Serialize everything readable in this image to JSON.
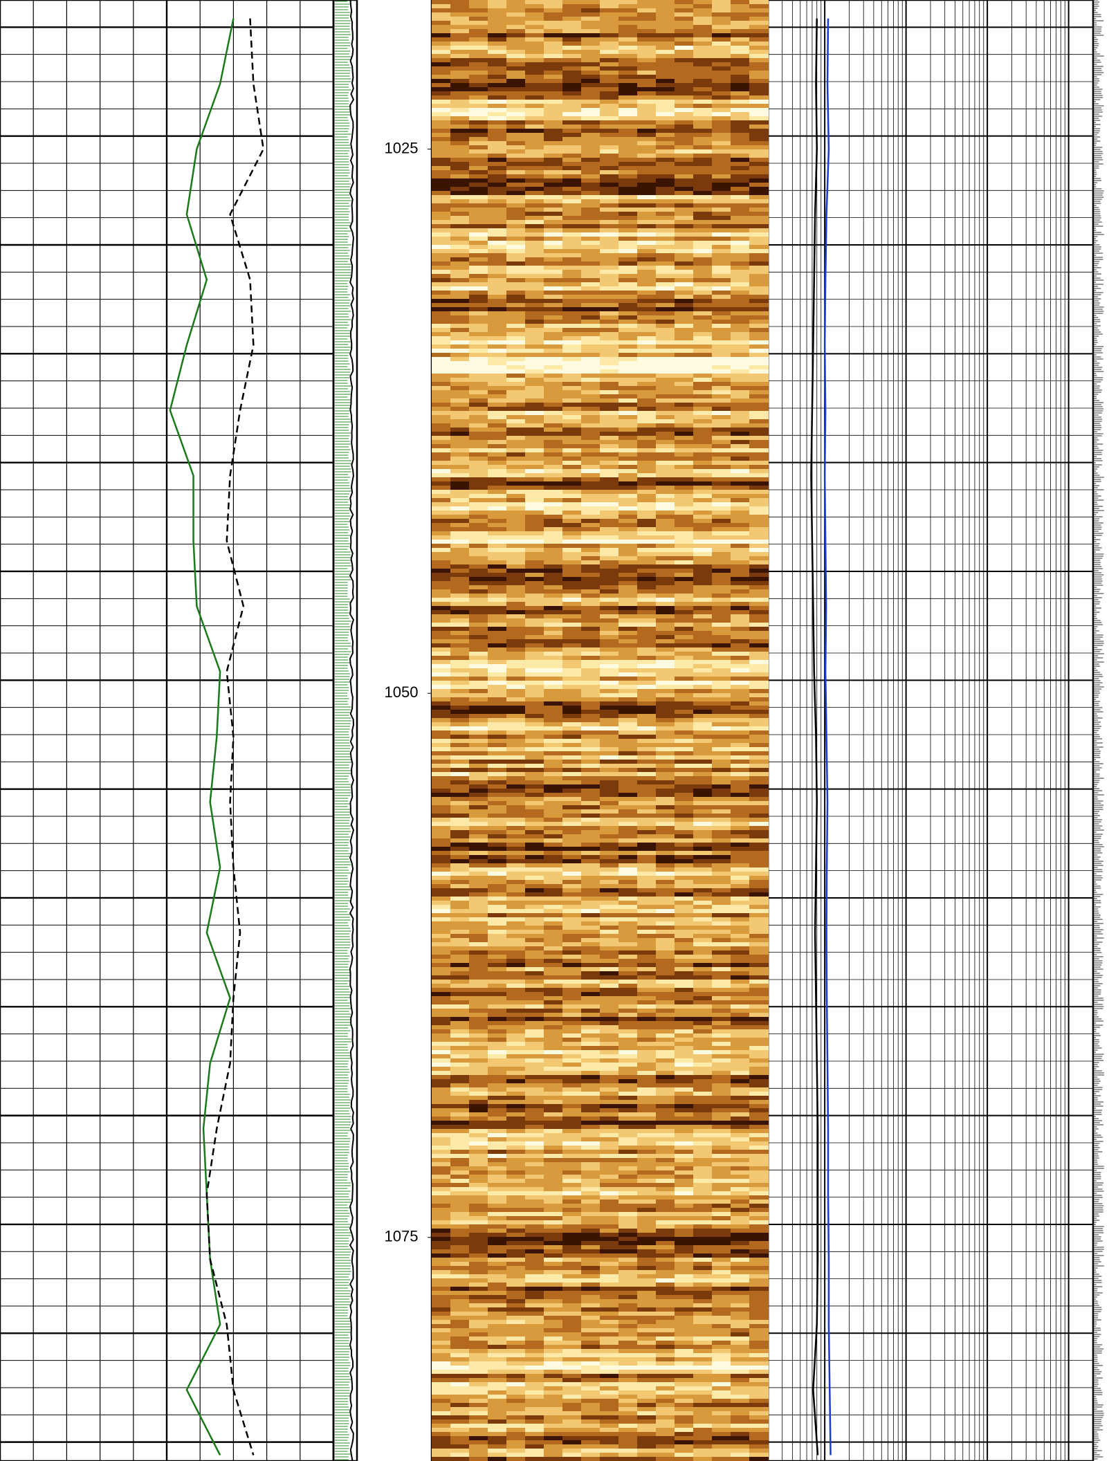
{
  "chart_data": {
    "type": "well-log",
    "ylim": [
      1018.15,
      1085.27
    ],
    "yticks": [
      1025,
      1050,
      1075
    ],
    "depth": [
      1019,
      1022,
      1025,
      1028,
      1031,
      1034,
      1037,
      1040,
      1043,
      1046,
      1049,
      1052,
      1055,
      1058,
      1061,
      1064,
      1067,
      1070,
      1073,
      1076,
      1079,
      1082,
      1085
    ],
    "tracks": [
      {
        "xlim": [
          0,
          100
        ],
        "series": [
          {
            "color": "#1a7a1a",
            "values": [
              70,
              66,
              59,
              56,
              62,
              56,
              51,
              58,
              58,
              59,
              66,
              65,
              63,
              66,
              62,
              69,
              63,
              61,
              62,
              63,
              66,
              56,
              66
            ]
          },
          {
            "color": "#000000",
            "dash": true,
            "values": [
              75,
              76,
              79,
              69,
              75,
              76,
              72,
              69,
              68,
              73,
              68,
              70,
              69,
              70,
              72,
              70,
              69,
              65,
              62,
              63,
              68,
              70,
              76
            ]
          }
        ]
      },
      {
        "xlim": [
          0.2,
          2000
        ],
        "log": true,
        "series": [
          {
            "color": "#000000",
            "values": [
              0.8,
              0.78,
              0.8,
              0.76,
              0.74,
              0.72,
              0.7,
              0.68,
              0.7,
              0.72,
              0.74,
              0.78,
              0.8,
              0.78,
              0.76,
              0.78,
              0.8,
              0.82,
              0.82,
              0.82,
              0.8,
              0.72,
              0.82
            ]
          },
          {
            "color": "#1a3ad0",
            "values": [
              1.1,
              1.08,
              1.12,
              1.05,
              1.02,
              1.0,
              1.02,
              1.0,
              1.02,
              1.04,
              1.02,
              1.05,
              1.08,
              1.06,
              1.05,
              1.06,
              1.08,
              1.1,
              1.1,
              1.12,
              1.12,
              1.15,
              1.18
            ]
          }
        ]
      }
    ]
  }
}
